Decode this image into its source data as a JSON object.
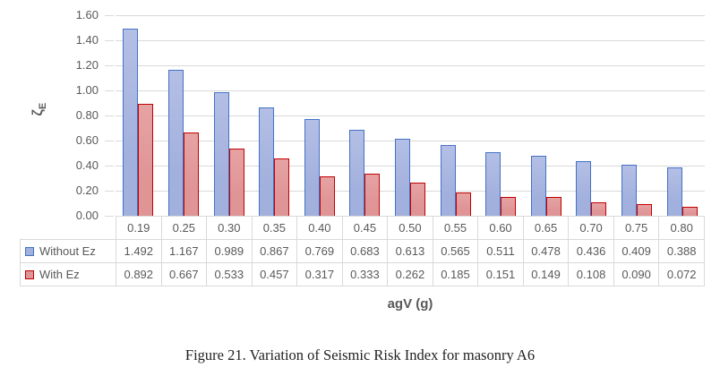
{
  "figure": {
    "caption": "Figure 21. Variation of Seismic Risk Index for masonry A6"
  },
  "chart_data": {
    "type": "bar",
    "title": "",
    "xlabel": "agV (g)",
    "ylabel": "ζ",
    "ylabel_subscript": "E",
    "ylim": [
      0,
      1.6
    ],
    "ytick_step": 0.2,
    "ytick_labels": [
      "1.60",
      "1.40",
      "1.20",
      "1.00",
      "0.80",
      "0.60",
      "0.40",
      "0.20",
      "0.00"
    ],
    "grid": true,
    "legend_position": "data-table-left",
    "value_decimals": 3,
    "categories": [
      "0.19",
      "0.25",
      "0.30",
      "0.35",
      "0.40",
      "0.45",
      "0.50",
      "0.55",
      "0.60",
      "0.65",
      "0.70",
      "0.75",
      "0.80"
    ],
    "series": [
      {
        "name": "Without Ez",
        "values": [
          1.492,
          1.167,
          0.989,
          0.867,
          0.769,
          0.683,
          0.613,
          0.565,
          0.511,
          0.478,
          0.436,
          0.409,
          0.388
        ],
        "fill_top": "#b3bfe5",
        "fill": "#a2b0dd",
        "border": "#4472c4"
      },
      {
        "name": "With Ez",
        "values": [
          0.892,
          0.667,
          0.533,
          0.457,
          0.317,
          0.333,
          0.262,
          0.185,
          0.151,
          0.149,
          0.108,
          0.09,
          0.072
        ],
        "fill_top": "#e6a3a3",
        "fill": "#df9496",
        "border": "#c00000"
      }
    ],
    "colors": {
      "gridline": "#d9d9d9",
      "axis_text": "#595959",
      "table_border": "#d9d9d9",
      "caption_text": "#1f1f1f"
    }
  }
}
